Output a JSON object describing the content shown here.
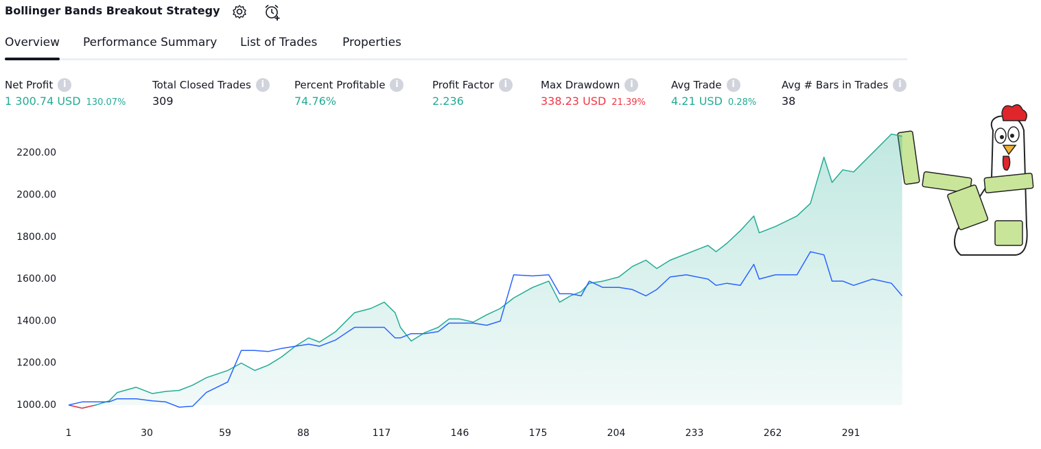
{
  "header": {
    "title": "Bollinger Bands Breakout Strategy"
  },
  "tabs": [
    "Overview",
    "Performance Summary",
    "List of Trades",
    "Properties"
  ],
  "metrics": [
    {
      "label": "Net Profit",
      "value": "1 300.74 USD",
      "percent": "130.07%",
      "color": "#22ab94"
    },
    {
      "label": "Total Closed Trades",
      "value": "309",
      "color": "#131722"
    },
    {
      "label": "Percent Profitable",
      "value": "74.76%",
      "color": "#22ab94"
    },
    {
      "label": "Profit Factor",
      "value": "2.236",
      "color": "#22ab94"
    },
    {
      "label": "Max Drawdown",
      "value": "338.23 USD",
      "percent": "21.39%",
      "color": "#f23645"
    },
    {
      "label": "Avg Trade",
      "value": "4.21 USD",
      "percent": "0.28%",
      "color": "#22ab94"
    },
    {
      "label": "Avg # Bars in Trades",
      "value": "38",
      "color": "#131722"
    }
  ],
  "chart_data": {
    "type": "line",
    "x": [
      1,
      6,
      11,
      16,
      19,
      26,
      32,
      37,
      42,
      47,
      52,
      60,
      65,
      70,
      75,
      80,
      85,
      90,
      94,
      100,
      107,
      113,
      118,
      122,
      124,
      128,
      133,
      138,
      142,
      146,
      151,
      156,
      161,
      166,
      173,
      179,
      183,
      187,
      191,
      194,
      199,
      205,
      210,
      215,
      219,
      224,
      230,
      238,
      241,
      245,
      250,
      255,
      257,
      263,
      271,
      276,
      281,
      284,
      288,
      292,
      299,
      306,
      310
    ],
    "series": [
      {
        "color": "#22ab94",
        "negative_color": "#f23645",
        "fill": true,
        "values": [
          1000,
          985,
          1000,
          1020,
          1060,
          1085,
          1055,
          1065,
          1070,
          1095,
          1130,
          1165,
          1200,
          1165,
          1190,
          1230,
          1280,
          1320,
          1300,
          1350,
          1440,
          1460,
          1490,
          1440,
          1370,
          1305,
          1345,
          1370,
          1410,
          1410,
          1395,
          1430,
          1460,
          1510,
          1560,
          1590,
          1490,
          1520,
          1540,
          1580,
          1590,
          1610,
          1660,
          1690,
          1650,
          1690,
          1720,
          1760,
          1730,
          1770,
          1830,
          1900,
          1820,
          1850,
          1900,
          1960,
          2180,
          2060,
          2120,
          2110,
          2200,
          2290,
          2280
        ]
      },
      {
        "color": "#2962ff",
        "values": [
          1000,
          1015,
          1015,
          1015,
          1030,
          1030,
          1020,
          1015,
          990,
          995,
          1060,
          1110,
          1260,
          1260,
          1255,
          1270,
          1280,
          1290,
          1280,
          1310,
          1370,
          1370,
          1370,
          1320,
          1320,
          1340,
          1340,
          1350,
          1390,
          1390,
          1390,
          1380,
          1400,
          1620,
          1615,
          1620,
          1530,
          1530,
          1520,
          1590,
          1560,
          1560,
          1550,
          1520,
          1550,
          1610,
          1620,
          1600,
          1570,
          1580,
          1570,
          1670,
          1600,
          1620,
          1620,
          1730,
          1715,
          1590,
          1590,
          1570,
          1600,
          1580,
          1520
        ]
      }
    ],
    "xlim": [
      1,
      310
    ],
    "xticks": [
      1,
      30,
      59,
      88,
      117,
      146,
      175,
      204,
      233,
      262,
      291
    ],
    "ylim": [
      975,
      2305
    ],
    "yticks": [
      {
        "value": 1000,
        "label": "1000.00"
      },
      {
        "value": 1200,
        "label": "1200.00"
      },
      {
        "value": 1400,
        "label": "1400.00"
      },
      {
        "value": 1600,
        "label": "1600.00"
      },
      {
        "value": 1800,
        "label": "1800.00"
      },
      {
        "value": 2000,
        "label": "2000.00"
      },
      {
        "value": 2200,
        "label": "2200.00"
      }
    ]
  }
}
